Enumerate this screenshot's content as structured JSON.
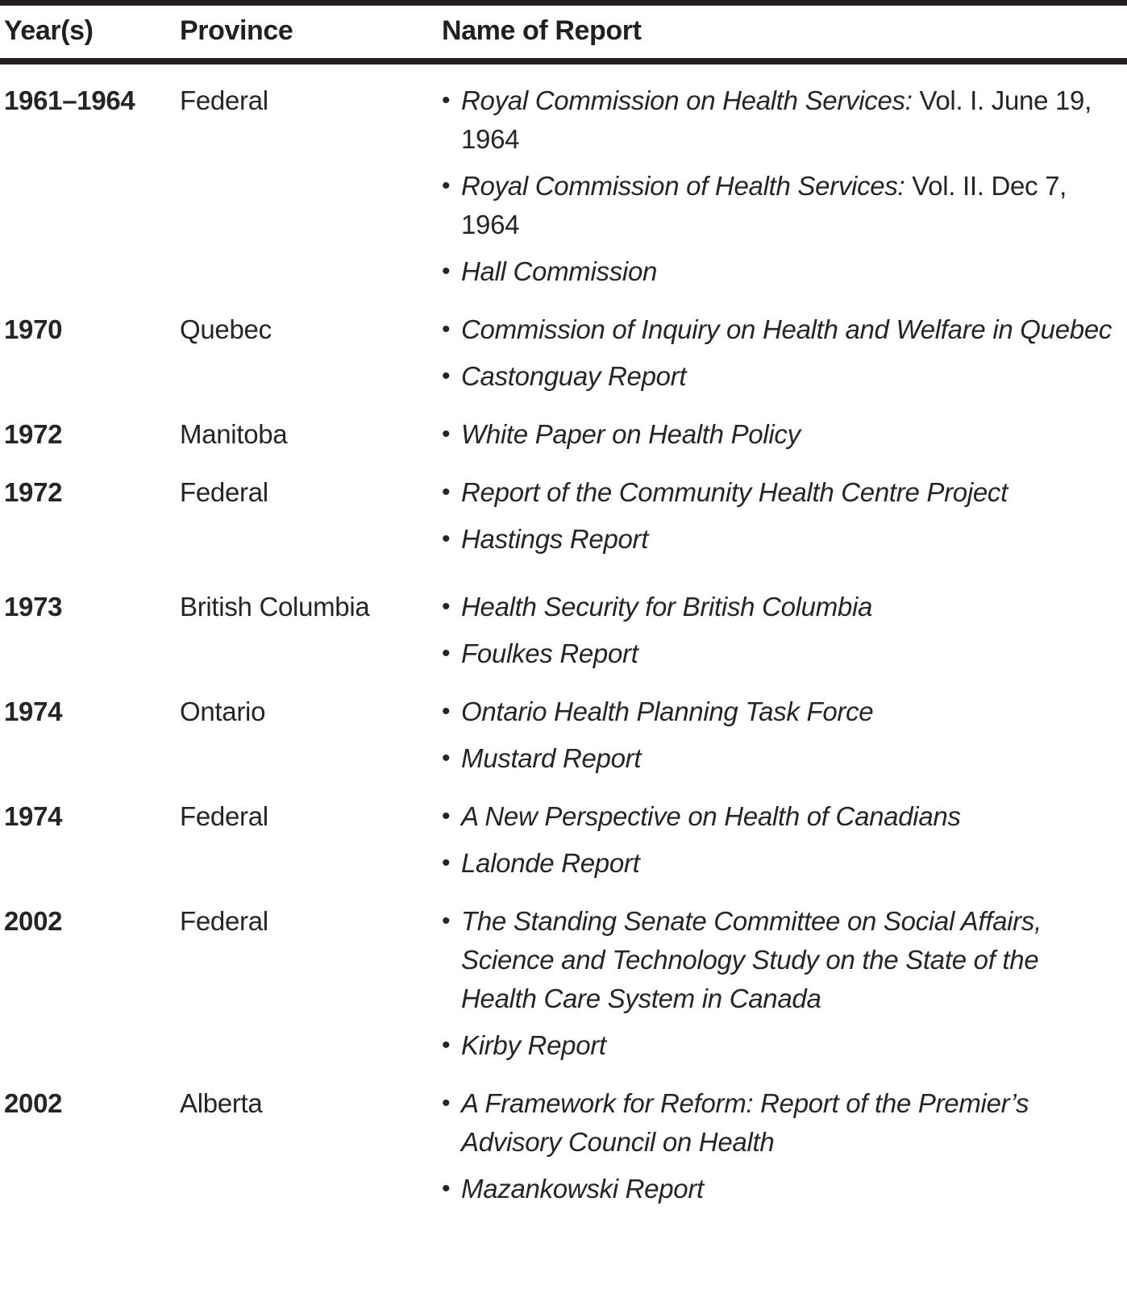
{
  "page": {
    "background_color": "#ffffff",
    "text_color": "#282425",
    "rule_color": "#231f20",
    "bullet_glyph": "•"
  },
  "table": {
    "columns": [
      {
        "label": "Year(s)"
      },
      {
        "label": "Province"
      },
      {
        "label": "Name of Report"
      }
    ],
    "rows": [
      {
        "years": "1961–1964",
        "province": "Federal",
        "extra_space_before": false,
        "reports": [
          {
            "title": "Royal Commission on Health Services:",
            "suffix": " Vol. I. June 19, 1964"
          },
          {
            "title": "Royal Commission of Health Services:",
            "suffix": " Vol. II. Dec 7, 1964"
          },
          {
            "title": "Hall Commission"
          }
        ]
      },
      {
        "years": "1970",
        "province": "Quebec",
        "extra_space_before": false,
        "reports": [
          {
            "title": "Commission of Inquiry on Health and Welfare in Quebec"
          },
          {
            "title": "Castonguay Report"
          }
        ]
      },
      {
        "years": "1972",
        "province": "Manitoba",
        "extra_space_before": false,
        "reports": [
          {
            "title": "White Paper on Health Policy"
          }
        ]
      },
      {
        "years": "1972",
        "province": "Federal",
        "extra_space_before": false,
        "reports": [
          {
            "title": "Report of the Community Health Centre Project"
          },
          {
            "title": "Hastings Report"
          }
        ]
      },
      {
        "years": "1973",
        "province": "British Columbia",
        "extra_space_before": true,
        "reports": [
          {
            "title": "Health Security for British Columbia"
          },
          {
            "title": "Foulkes Report"
          }
        ]
      },
      {
        "years": "1974",
        "province": "Ontario",
        "extra_space_before": false,
        "reports": [
          {
            "title": "Ontario Health Planning Task Force"
          },
          {
            "title": "Mustard Report"
          }
        ]
      },
      {
        "years": "1974",
        "province": "Federal",
        "extra_space_before": false,
        "reports": [
          {
            "title": "A New Perspective on Health of Canadians"
          },
          {
            "title": "Lalonde Report"
          }
        ]
      },
      {
        "years": "2002",
        "province": "Federal",
        "extra_space_before": false,
        "reports": [
          {
            "title": "The Standing Senate Committee on Social Affairs, Science and Technology Study on the State of the Health Care System in Canada"
          },
          {
            "title": "Kirby Report"
          }
        ]
      },
      {
        "years": "2002",
        "province": "Alberta",
        "extra_space_before": false,
        "reports": [
          {
            "title": "A Framework for Reform: Report of the Premier’s Advisory Council on Health"
          },
          {
            "title": "Mazankowski Report"
          }
        ]
      }
    ]
  }
}
